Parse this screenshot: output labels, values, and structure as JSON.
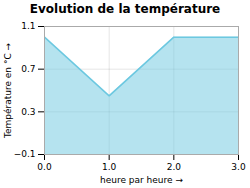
{
  "chart_data": {
    "type": "area",
    "title": "Evolution de la température",
    "xlabel": "heure par heure",
    "ylabel": "Température en °C",
    "x": [
      0,
      1,
      2,
      3
    ],
    "values": [
      1.0,
      0.45,
      1.0,
      1.0
    ],
    "color": "#6cc8e0",
    "xlim": [
      0,
      3
    ],
    "ylim": [
      -0.1,
      1.1
    ],
    "xticks": [
      0,
      1,
      2,
      3
    ],
    "yticks": [
      -0.1,
      0.3,
      0.7,
      1.1
    ],
    "grid": true
  }
}
